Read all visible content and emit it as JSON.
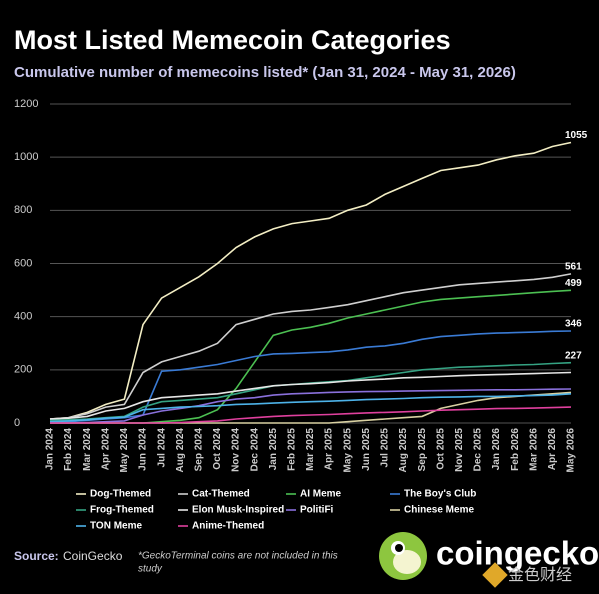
{
  "chart_data": {
    "type": "line",
    "title": "Most Listed Memecoin Categories",
    "subtitle": "Cumulative number of memecoins listed* (Jan 31, 2024 - May 31, 2026)",
    "categories": [
      "Jan 2024",
      "Feb 2024",
      "Mar 2024",
      "Apr 2024",
      "May 2024",
      "Jun 2024",
      "Jul 2024",
      "Aug 2024",
      "Sep 2024",
      "Oct 2024",
      "Nov 2024",
      "Dec 2024",
      "Jan 2025",
      "Feb 2025",
      "Mar 2025",
      "Apr 2025",
      "May 2025",
      "Jun 2025",
      "Jul 2025",
      "Aug 2025",
      "Sep 2025",
      "Oct 2025",
      "Nov 2025",
      "Dec 2025",
      "Jan 2026",
      "Feb 2026",
      "Mar 2026",
      "Apr 2026",
      "May 2026"
    ],
    "ylim": [
      0,
      1200
    ],
    "yticks": [
      0,
      200,
      400,
      600,
      800,
      1000,
      1200
    ],
    "grid": true,
    "series": [
      {
        "name": "Dog-Themed",
        "color": "#f3eec4",
        "show_end_label": true,
        "values": [
          15,
          20,
          40,
          70,
          90,
          370,
          470,
          510,
          550,
          600,
          660,
          700,
          730,
          750,
          760,
          770,
          800,
          820,
          860,
          890,
          920,
          950,
          960,
          970,
          990,
          1005,
          1015,
          1040,
          1055
        ]
      },
      {
        "name": "Cat-Themed",
        "color": "#cfcfcf",
        "show_end_label": true,
        "values": [
          15,
          20,
          35,
          60,
          70,
          190,
          230,
          250,
          270,
          300,
          370,
          390,
          410,
          420,
          425,
          435,
          445,
          460,
          475,
          490,
          500,
          510,
          520,
          525,
          530,
          535,
          540,
          548,
          561
        ]
      },
      {
        "name": "AI Meme",
        "color": "#4cc052",
        "show_end_label": true,
        "values": [
          0,
          0,
          0,
          0,
          0,
          0,
          5,
          10,
          20,
          50,
          130,
          230,
          330,
          350,
          360,
          375,
          395,
          410,
          425,
          440,
          455,
          465,
          470,
          475,
          480,
          485,
          490,
          495,
          499
        ]
      },
      {
        "name": "The Boy's Club",
        "color": "#3a7bd5",
        "show_end_label": true,
        "values": [
          5,
          5,
          10,
          15,
          20,
          30,
          195,
          200,
          210,
          220,
          235,
          250,
          260,
          262,
          265,
          268,
          275,
          285,
          290,
          300,
          315,
          325,
          330,
          335,
          338,
          340,
          342,
          345,
          346
        ]
      },
      {
        "name": "Frog-Themed",
        "color": "#35a383",
        "show_end_label": true,
        "values": [
          10,
          12,
          15,
          20,
          25,
          60,
          80,
          85,
          90,
          95,
          110,
          125,
          140,
          145,
          150,
          155,
          160,
          170,
          180,
          190,
          200,
          205,
          210,
          212,
          215,
          218,
          220,
          224,
          227
        ]
      },
      {
        "name": "Elon Musk-Inspired",
        "color": "#e6e6e6",
        "values": [
          15,
          18,
          25,
          45,
          55,
          80,
          95,
          100,
          105,
          110,
          120,
          130,
          140,
          145,
          148,
          152,
          158,
          162,
          165,
          170,
          172,
          175,
          178,
          180,
          182,
          184,
          186,
          188,
          190
        ]
      },
      {
        "name": "PolitiFi",
        "color": "#8a70dc",
        "values": [
          0,
          0,
          2,
          5,
          8,
          30,
          45,
          55,
          65,
          80,
          90,
          95,
          105,
          110,
          112,
          115,
          117,
          118,
          119,
          120,
          121,
          122,
          123,
          124,
          125,
          125,
          126,
          127,
          128
        ]
      },
      {
        "name": "Chinese Meme",
        "color": "#d9d1a2",
        "values": [
          0,
          0,
          0,
          0,
          0,
          0,
          0,
          0,
          0,
          0,
          0,
          0,
          0,
          0,
          0,
          0,
          5,
          10,
          15,
          20,
          25,
          55,
          70,
          85,
          95,
          100,
          105,
          110,
          115
        ]
      },
      {
        "name": "TON Meme",
        "color": "#4db2e8",
        "values": [
          5,
          8,
          12,
          18,
          22,
          50,
          55,
          60,
          62,
          65,
          70,
          72,
          75,
          78,
          80,
          82,
          85,
          88,
          90,
          92,
          95,
          97,
          98,
          100,
          100,
          102,
          103,
          105,
          110
        ]
      },
      {
        "name": "Anime-Themed",
        "color": "#e0409e",
        "values": [
          0,
          0,
          0,
          0,
          0,
          0,
          0,
          2,
          5,
          8,
          15,
          20,
          25,
          28,
          30,
          32,
          35,
          38,
          40,
          42,
          45,
          48,
          50,
          52,
          54,
          55,
          56,
          58,
          60
        ]
      }
    ],
    "source_label": "Source:",
    "source": "CoinGecko",
    "footnote": [
      "*GeckoTerminal coins are not included in this",
      "study"
    ],
    "logo_text": "coingecko",
    "watermark": "金色财经"
  }
}
